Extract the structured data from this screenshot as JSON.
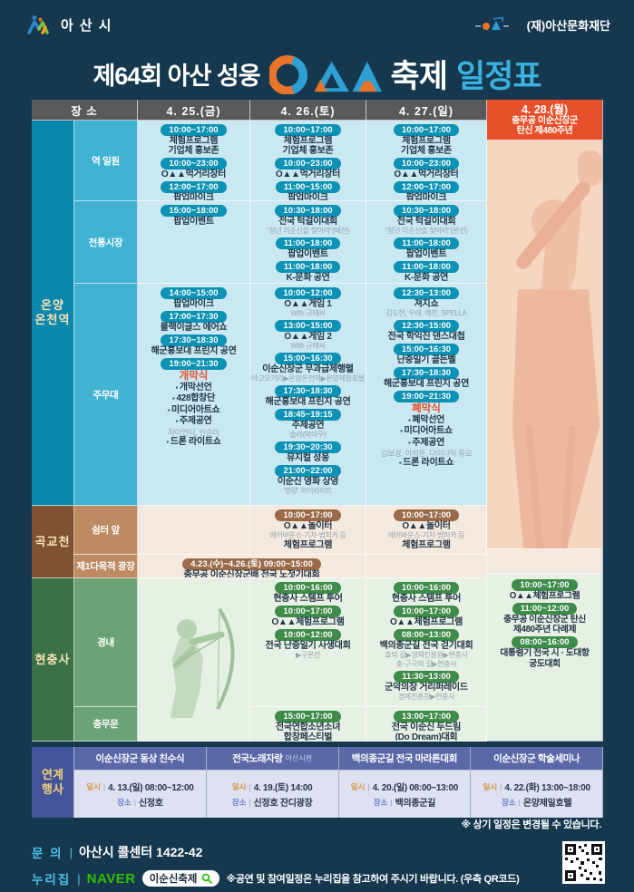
{
  "colors": {
    "background": "#16384E",
    "accent_orange": "#E8502B",
    "pill_teal": "#0C92B4",
    "pill_brown": "#9B6A49",
    "pill_green": "#3E8B4A",
    "highlight_cyan": "#3BB1E0",
    "naver_green": "#2FBE00"
  },
  "header": {
    "city": "아산시",
    "foundation": "(재)아산문화재단"
  },
  "title": {
    "prefix": "제64회 아산 성웅",
    "word": "축제",
    "highlight": "일정표"
  },
  "schedule": {
    "place_header": "장 소",
    "days": [
      "4. 25.(금)",
      "4. 26.(토)",
      "4. 27.(일)"
    ],
    "day4": {
      "date": "4. 28.(월)",
      "sub1": "충무공 이순신장군",
      "sub2": "탄신 제480주년",
      "blocks": [
        [
          "pill",
          "10:00~17:00"
        ],
        [
          "title",
          "O▲▲체험프로그램"
        ],
        [
          "pill",
          "11:00~12:00"
        ],
        [
          "title",
          "충무공 이순신장군 탄신"
        ],
        [
          "title",
          "제480주년 다례제"
        ],
        [
          "pill",
          "08:00~16:00"
        ],
        [
          "title",
          "대통령기 전국 시 · 도대항"
        ],
        [
          "title",
          "궁도대회"
        ]
      ]
    },
    "groups": [
      {
        "name": "온양온천역",
        "label_lines": [
          "온양",
          "온천역"
        ],
        "theme": "blue",
        "rows": [
          {
            "label": "역 일원",
            "cells": [
              [
                [
                  "pill",
                  "10:00~17:00"
                ],
                [
                  "title",
                  "체험프로그램"
                ],
                [
                  "title",
                  "기업체 홍보존"
                ],
                [
                  "pill",
                  "10:00~23:00"
                ],
                [
                  "title",
                  "O▲▲먹거리장터"
                ],
                [
                  "pill",
                  "12:00~17:00"
                ],
                [
                  "title",
                  "팝업마이크"
                ]
              ],
              [
                [
                  "pill",
                  "10:00~17:00"
                ],
                [
                  "title",
                  "체험프로그램"
                ],
                [
                  "title",
                  "기업체 홍보존"
                ],
                [
                  "pill",
                  "10:00~23:00"
                ],
                [
                  "title",
                  "O▲▲먹거리장터"
                ],
                [
                  "pill",
                  "11:00~15:00"
                ],
                [
                  "title",
                  "팝업마이크"
                ]
              ],
              [
                [
                  "pill",
                  "10:00~17:00"
                ],
                [
                  "title",
                  "체험프로그램"
                ],
                [
                  "title",
                  "기업체 홍보존"
                ],
                [
                  "pill",
                  "10:00~23:00"
                ],
                [
                  "title",
                  "O▲▲먹거리장터"
                ],
                [
                  "pill",
                  "12:00~17:00"
                ],
                [
                  "title",
                  "팝업마이크"
                ]
              ]
            ]
          },
          {
            "label": "전통시장",
            "cells": [
              [
                [
                  "pill",
                  "15:00~18:00"
                ],
                [
                  "title",
                  "팝업이벤트"
                ]
              ],
              [
                [
                  "pill",
                  "10:30~18:00"
                ],
                [
                  "title",
                  "전국 턱걸이대회"
                ],
                [
                  "sub",
                  "\"청년 이순신을 찾아라\"(예선)"
                ],
                [
                  "pill",
                  "11:00~18:00"
                ],
                [
                  "title",
                  "팝업이벤트"
                ],
                [
                  "pill",
                  "11:00~18:00"
                ],
                [
                  "title",
                  "K-문화 공연"
                ]
              ],
              [
                [
                  "pill",
                  "10:30~18:00"
                ],
                [
                  "title",
                  "전국 턱걸이대회"
                ],
                [
                  "sub",
                  "\"청년 이순신을 찾아라\"(본선)"
                ],
                [
                  "pill",
                  "11:00~18:00"
                ],
                [
                  "title",
                  "팝업이벤트"
                ],
                [
                  "pill",
                  "11:00~18:00"
                ],
                [
                  "title",
                  "K-문화 공연"
                ]
              ]
            ]
          },
          {
            "label": "주무대",
            "cells": [
              [
                [
                  "pill",
                  "14:00~15:00"
                ],
                [
                  "title",
                  "팝업마이크"
                ],
                [
                  "pill",
                  "17:00~17:30"
                ],
                [
                  "title",
                  "블랙이글스 에어쇼"
                ],
                [
                  "pill",
                  "17:30~18:30"
                ],
                [
                  "title",
                  "해군홍보대 프린지 공연"
                ],
                [
                  "pill",
                  "19:00~21:30"
                ],
                [
                  "accent",
                  "개막식"
                ],
                [
                  "bullet",
                  "개막선언"
                ],
                [
                  "bullet",
                  "428합창단"
                ],
                [
                  "bullet",
                  "미디어아트쇼"
                ],
                [
                  "bullet",
                  "주제공연"
                ],
                [
                  "grey",
                  "자이언티, 인순이"
                ],
                [
                  "bullet",
                  "드론 라이트쇼"
                ]
              ],
              [
                [
                  "pill",
                  "10:00~12:00"
                ],
                [
                  "title",
                  "O▲▲게임 1"
                ],
                [
                  "sub",
                  "With 규태씨"
                ],
                [
                  "pill",
                  "13:00~15:00"
                ],
                [
                  "title",
                  "O▲▲게임 2"
                ],
                [
                  "sub",
                  "With 규태씨"
                ],
                [
                  "pill",
                  "15:00~16:30"
                ],
                [
                  "title",
                  "이순신장군 무과급제행렬"
                ],
                [
                  "sub",
                  "아고오거리▶온양온천역▶온양제일호텔"
                ],
                [
                  "pill",
                  "17:30~18:30"
                ],
                [
                  "title",
                  "해군홍보대 프린지 공연"
                ],
                [
                  "pill",
                  "18:45~19:15"
                ],
                [
                  "title",
                  "주제공연"
                ],
                [
                  "sub",
                  "솔라(마마무)"
                ],
                [
                  "pill",
                  "19:30~20:30"
                ],
                [
                  "title",
                  "뮤지컬 성웅"
                ],
                [
                  "pill",
                  "21:00~22:00"
                ],
                [
                  "title",
                  "이순신 영화 상영"
                ],
                [
                  "sub",
                  "'명량' 하이라이트"
                ]
              ],
              [
                [
                  "pill",
                  "12:30~13:00"
                ],
                [
                  "title",
                  "져지쇼"
                ],
                [
                  "sub",
                  "김도현, 우태, 예찬, SPELLA"
                ],
                [
                  "pill",
                  "12:30~15:00"
                ],
                [
                  "title",
                  "전국 학익진 댄스대첩"
                ],
                [
                  "pill",
                  "15:00~16:30"
                ],
                [
                  "title",
                  "난중일기 골든벨"
                ],
                [
                  "pill",
                  "17:30~18:30"
                ],
                [
                  "title",
                  "해군홍보대 프린지 공연"
                ],
                [
                  "pill",
                  "19:00~21:30"
                ],
                [
                  "accent",
                  "폐막식"
                ],
                [
                  "bullet",
                  "폐막선언"
                ],
                [
                  "bullet",
                  "미디어아트쇼"
                ],
                [
                  "bullet",
                  "주제공연"
                ],
                [
                  "grey",
                  "김보경, 이석훈, 다이나믹 듀오"
                ],
                [
                  "bullet",
                  "드론 라이트쇼"
                ]
              ]
            ]
          }
        ]
      },
      {
        "name": "곡교천",
        "label_lines": [
          "곡교천"
        ],
        "theme": "brown",
        "rows": [
          {
            "label": "쉼터 앞",
            "cells": [
              [],
              [
                [
                  "pill",
                  "10:00~17:00"
                ],
                [
                  "title",
                  "O▲▲놀이터"
                ],
                [
                  "sub",
                  "에어바운스·기차·범퍼카 등"
                ],
                [
                  "title",
                  "체험프로그램"
                ]
              ],
              [
                [
                  "pill",
                  "10:00~17:00"
                ],
                [
                  "title",
                  "O▲▲놀이터"
                ],
                [
                  "sub",
                  "에어바운스·기차·범퍼카 등"
                ],
                [
                  "title",
                  "체험프로그램"
                ]
              ]
            ]
          },
          {
            "label": "제1다목적 광장",
            "span2": [
              [
                "pill",
                "4.23.(수)~4.26.(토) 09:00~15:00"
              ],
              [
                "title",
                "충무공 이순신장군배 전국 노젓기대회"
              ]
            ],
            "cells": [
              null,
              null,
              []
            ]
          }
        ]
      },
      {
        "name": "현충사",
        "label_lines": [
          "현충사"
        ],
        "theme": "green",
        "rows": [
          {
            "label": "경내",
            "illus": true,
            "cells": [
              null,
              [
                [
                  "pill",
                  "10:00~16:00"
                ],
                [
                  "title",
                  "현충사 스탬프 투어"
                ],
                [
                  "pill",
                  "10:00~17:00"
                ],
                [
                  "title",
                  "O▲▲체험프로그램"
                ],
                [
                  "pill",
                  "10:00~12:00"
                ],
                [
                  "title",
                  "전국 난중일기 사생대회"
                ],
                [
                  "sub",
                  "▶구본전"
                ]
              ],
              [
                [
                  "pill",
                  "10:00~16:00"
                ],
                [
                  "title",
                  "현충사 스탬프 투어"
                ],
                [
                  "pill",
                  "10:00~17:00"
                ],
                [
                  "title",
                  "O▲▲체험프로그램"
                ],
                [
                  "pill",
                  "08:00~13:00"
                ],
                [
                  "title",
                  "백의종군길 전국 걷기대회"
                ],
                [
                  "sub",
                  "효의 길▶경제진흥원▶현충사"
                ],
                [
                  "sub",
                  "충·구국의 길▶현충사"
                ],
                [
                  "pill",
                  "11:30~13:00"
                ],
                [
                  "title",
                  "군악의장 거리퍼레이드"
                ],
                [
                  "sub",
                  "경제진흥원▶현충사"
                ]
              ]
            ]
          },
          {
            "label": "충무문",
            "cells": [
              null,
              [
                [
                  "pill",
                  "15:00~17:00"
                ],
                [
                  "title",
                  "전국연합소년소녀"
                ],
                [
                  "title",
                  "합창페스티벌"
                ]
              ],
              [
                [
                  "pill",
                  "13:00~17:00"
                ],
                [
                  "title",
                  "전국 이순신 두드림"
                ],
                [
                  "title",
                  "(Do Dream)대회"
                ]
              ]
            ]
          }
        ]
      }
    ]
  },
  "linked": {
    "label1": "연계",
    "label2": "행사",
    "date_label": "일시",
    "place_label": "장소",
    "sep": "|",
    "items": [
      {
        "title": "이순신장군 동상 친수식",
        "date": "4. 13.(일) 08:00~12:00",
        "place": "신정호"
      },
      {
        "title": "전국노래자랑",
        "suffix": "아산시편",
        "date": "4. 19.(토) 14:00",
        "place": "신정호 잔디광장"
      },
      {
        "title": "백의종군길 전국 마라톤대회",
        "date": "4. 20.(일) 08:00~13:00",
        "place": "백의종군길"
      },
      {
        "title": "이순신장군 학술세미나",
        "date": "4. 22.(화) 13:00~18:00",
        "place": "온양제일호텔"
      }
    ]
  },
  "notice": "※ 상기 일정은 변경될 수 있습니다.",
  "contact": {
    "inquiry_label": "문 의",
    "sep": "|",
    "inquiry_value": "아산시 콜센터 1422-42",
    "web_label": "누리집",
    "naver": "NAVER",
    "search": "이순신축제",
    "note": "※공연 및 참여일정은 누리집을 참고하여 주시기 바랍니다. (우측 QR코드)"
  }
}
